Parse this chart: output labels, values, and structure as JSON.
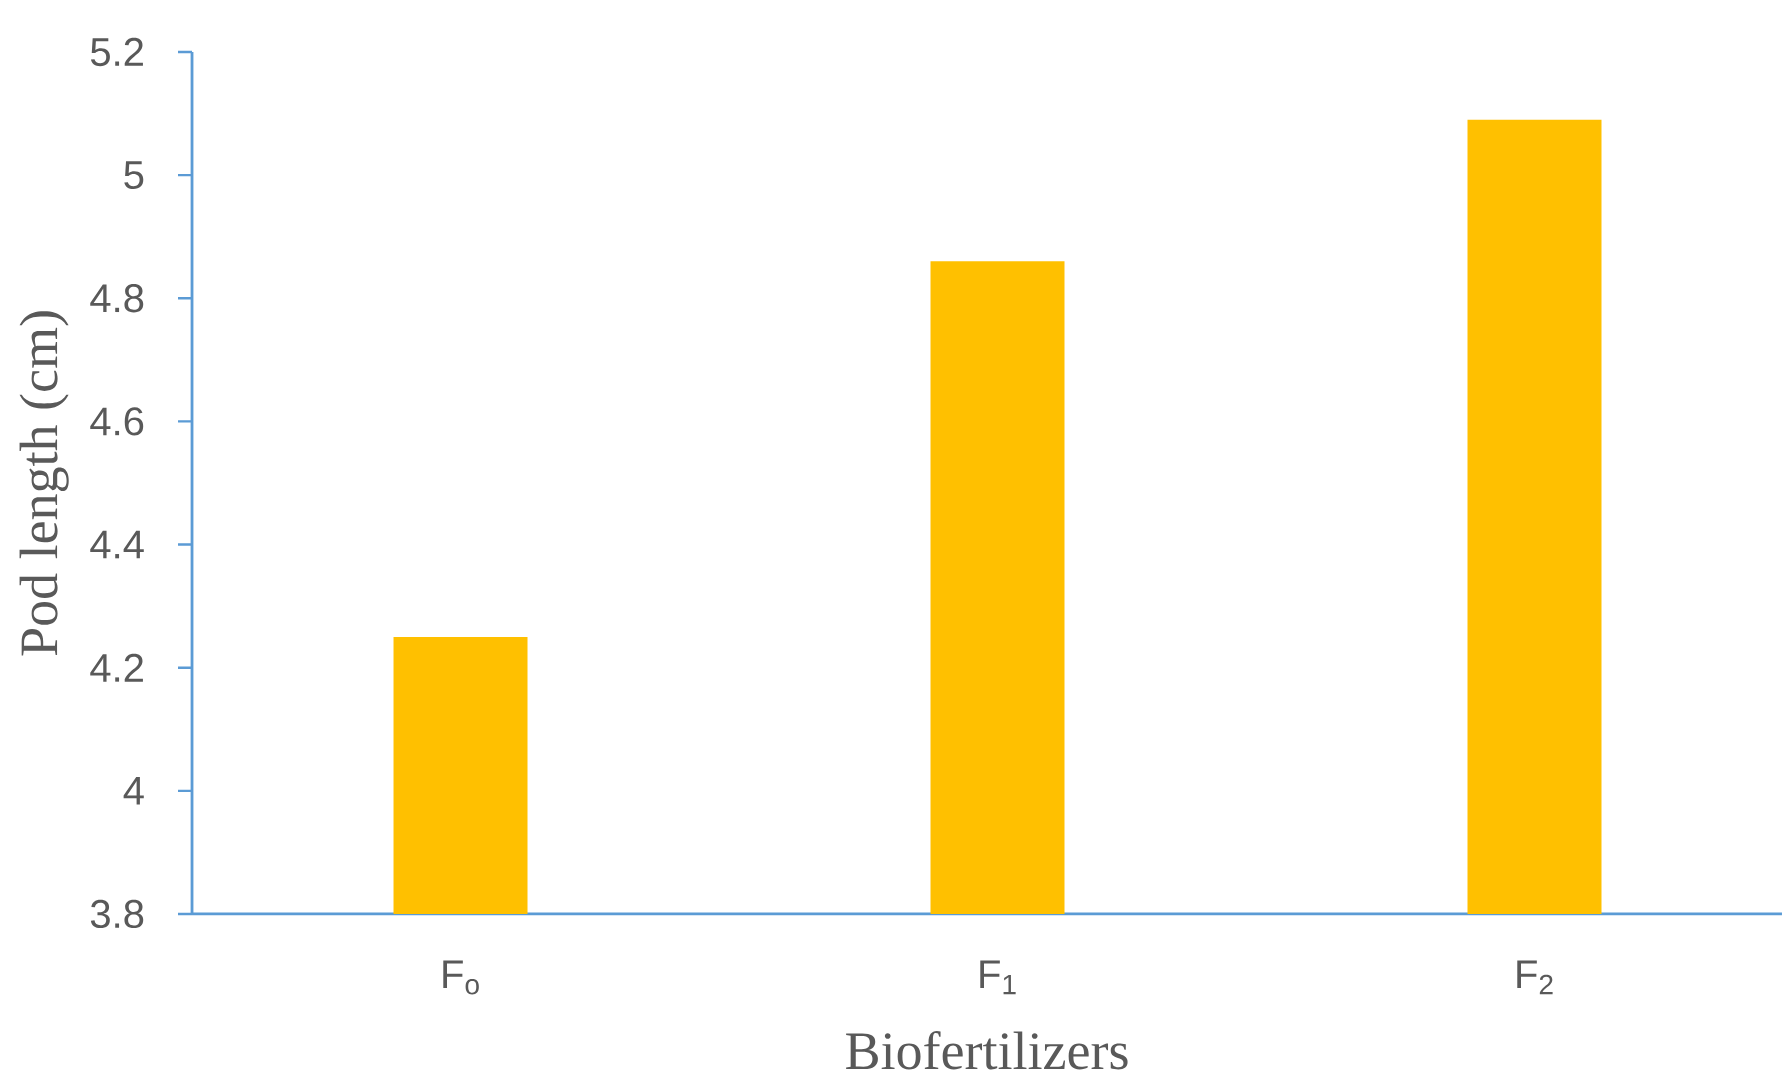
{
  "chart_data": {
    "type": "bar",
    "xlabel": "Biofertilizers",
    "ylabel": "Pod length (cm)",
    "categories": [
      "F$_{o}$",
      "F$_{1}$",
      "F$_{2}$"
    ],
    "values": [
      4.25,
      4.86,
      5.09
    ],
    "color": "#ffc000",
    "ylim": [
      3.8,
      5.2
    ],
    "yticks": [
      3.8,
      4,
      4.2,
      4.4,
      4.6,
      4.8,
      5,
      5.2
    ]
  }
}
